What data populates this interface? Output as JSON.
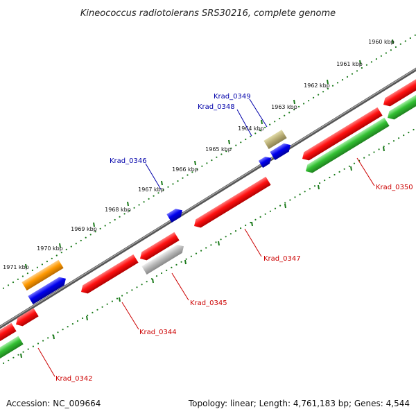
{
  "title": "Kineococcus radiotolerans SRS30216, complete genome",
  "footer": {
    "accession": "Accession: NC_009664",
    "summary": "Topology: linear; Length: 4,761,183 bp; Genes: 4,544"
  },
  "colors": {
    "backbone": "#888888",
    "tick": "#1a7a1a",
    "label_blue": "#0000aa",
    "label_red": "#cc0000",
    "red": "#ff0000",
    "green": "#33bb33",
    "blue": "#0000ee",
    "orange": "#ff9900",
    "gray": "#bbbbbb",
    "khaki": "#bbb077"
  },
  "ticks": [
    "1960 kbp",
    "1961 kbp",
    "1962 kbp",
    "1963 kbp",
    "1964 kbp",
    "1965 kbp",
    "1966 kbp",
    "1967 kbp",
    "1968 kbp",
    "1969 kbp",
    "1970 kbp",
    "1971 kbp"
  ],
  "gene_labels": [
    "Krad_0349",
    "Krad_0348",
    "Krad_0346",
    "Krad_0350",
    "Krad_0347",
    "Krad_0345",
    "Krad_0344",
    "Krad_0342"
  ]
}
